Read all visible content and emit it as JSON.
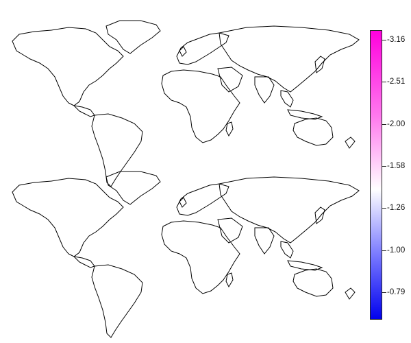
{
  "colors": {
    "high": "#ff00dd",
    "mid": "#ffffff",
    "low": "#0000ee",
    "coast": "#000000",
    "background": "#ffffff"
  },
  "legend": {
    "ticks": [
      {
        "label": "-3.16",
        "value": -3.16
      },
      {
        "label": "-2.51",
        "value": -2.51
      },
      {
        "label": "-2.00",
        "value": -2.0
      },
      {
        "label": "-1.58",
        "value": -1.58
      },
      {
        "label": "-1.26",
        "value": -1.26
      },
      {
        "label": "-1.00",
        "value": -1.0
      },
      {
        "label": "-0.79",
        "value": -0.79
      }
    ]
  },
  "panels": [
    {
      "id": "top-map",
      "icon": "world-map-icon"
    },
    {
      "id": "bottom-map",
      "icon": "world-map-icon"
    }
  ]
}
